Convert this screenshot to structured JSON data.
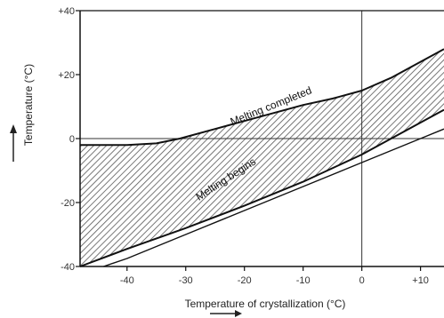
{
  "chart_data": {
    "type": "line",
    "title": "",
    "xlabel": "Temperature of crystallization (°C)",
    "ylabel": "Temperature (°C)",
    "xlim": [
      -48,
      14
    ],
    "ylim": [
      -40,
      40
    ],
    "xticks": [
      -40,
      -30,
      -20,
      -10,
      0,
      10
    ],
    "xtick_labels": [
      "-40",
      "-30",
      "-20",
      "-10",
      "0",
      "+10"
    ],
    "yticks": [
      40,
      20,
      0,
      -20,
      -40
    ],
    "ytick_labels": [
      "+40",
      "+20",
      "0",
      "-20",
      "-40"
    ],
    "reference_lines": [
      {
        "axis": "x",
        "value": 0
      },
      {
        "axis": "y",
        "value": 0
      }
    ],
    "series": [
      {
        "name": "Melting completed",
        "x": [
          -48,
          -40,
          -35,
          -31,
          -25,
          -20,
          -15,
          -10,
          -5,
          0,
          5,
          10,
          14
        ],
        "y": [
          -2,
          -2,
          -1.5,
          0,
          3,
          5.5,
          8,
          10.5,
          12.5,
          15,
          19,
          24,
          28
        ]
      },
      {
        "name": "Melting begins",
        "x": [
          -48,
          -40,
          -30,
          -20,
          -10,
          0,
          5,
          10,
          14
        ],
        "y": [
          -40,
          -34.5,
          -28,
          -21,
          -13.5,
          -5,
          0,
          5,
          9
        ]
      },
      {
        "name": "",
        "x": [
          -44,
          -40,
          -30,
          -20,
          -10,
          0,
          10,
          14
        ],
        "y": [
          -40,
          -37.5,
          -30,
          -22.5,
          -15,
          -7.5,
          0,
          3
        ]
      }
    ],
    "shaded_region": {
      "between": [
        "Melting completed",
        "Melting begins"
      ],
      "pattern": "hatched"
    },
    "annotations": [
      "Melting completed",
      "Melting begins"
    ],
    "grid": false,
    "legend": "none"
  }
}
